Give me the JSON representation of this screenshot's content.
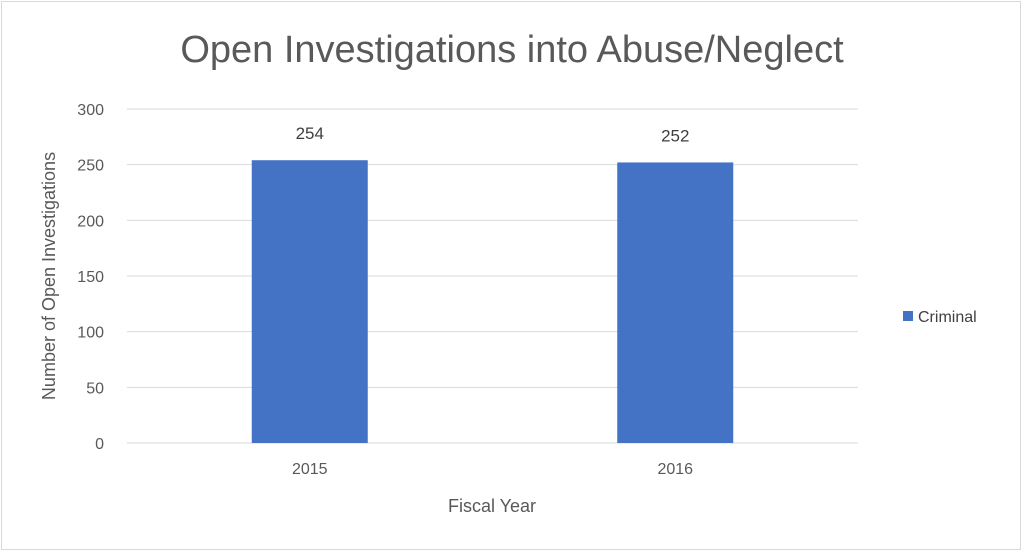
{
  "chart_data": {
    "type": "bar",
    "title": "Open Investigations into Abuse/Neglect",
    "xlabel": "Fiscal Year",
    "ylabel": "Number of Open Investigations",
    "categories": [
      "2015",
      "2016"
    ],
    "series": [
      {
        "name": "Criminal",
        "values": [
          254,
          252
        ],
        "color": "#4472c4"
      }
    ],
    "ylim": [
      0,
      300
    ],
    "yticks": [
      0,
      50,
      100,
      150,
      200,
      250,
      300
    ],
    "grid": true,
    "legend_position": "right"
  }
}
